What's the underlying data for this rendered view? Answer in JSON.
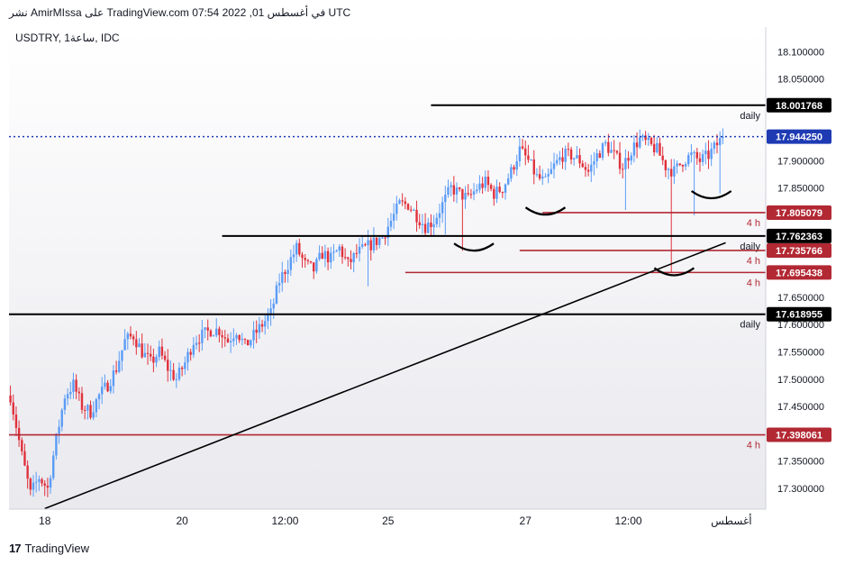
{
  "header": {
    "published_line": "نشر AmirMIssa على TradingView.com في أغسطس 01, 2022 07:54 UTC",
    "symbol_line": "USDTRY, 1ساعة, IDC"
  },
  "footer": {
    "brand": "TradingView",
    "logo_glyph": "17"
  },
  "colors": {
    "up": "#5b9cf6",
    "down": "#e0313c",
    "bg_top": "#ffffff",
    "bg_bottom": "#e9e9ee",
    "last_price_line": "#1e3bb3",
    "support_line": "#b22833",
    "level_line": "#000000"
  },
  "chart_data": {
    "type": "candlestick",
    "symbol": "USDTRY",
    "timeframe": "1ساعة",
    "source": "IDC",
    "y_range": [
      17.262,
      18.145
    ],
    "y_ticks": [
      {
        "value": 18.1,
        "label": "18.100000"
      },
      {
        "value": 18.05,
        "label": "18.050000"
      },
      {
        "value": 17.9,
        "label": "17.900000"
      },
      {
        "value": 17.85,
        "label": "17.850000"
      },
      {
        "value": 17.65,
        "label": "17.650000"
      },
      {
        "value": 17.6,
        "label": "17.600000"
      },
      {
        "value": 17.55,
        "label": "17.550000"
      },
      {
        "value": 17.5,
        "label": "17.500000"
      },
      {
        "value": 17.45,
        "label": "17.450000"
      },
      {
        "value": 17.35,
        "label": "17.350000"
      },
      {
        "value": 17.3,
        "label": "17.300000"
      }
    ],
    "x_ticks": [
      {
        "label": "18",
        "t": 0.0
      },
      {
        "label": "20",
        "t": 48.0
      },
      {
        "label": "12:00",
        "t": 84.0
      },
      {
        "label": "25",
        "t": 120.0
      },
      {
        "label": "27",
        "t": 168.0
      },
      {
        "label": "12:00",
        "t": 204.0
      },
      {
        "label": "أغسطس",
        "t": 240.0
      }
    ],
    "t_range": [
      -12.5,
      252
    ],
    "last_price": {
      "value": 17.94425,
      "label": "17.944250"
    },
    "levels": [
      {
        "value": 18.001768,
        "label": "18.001768",
        "tf": "daily",
        "kind": "daily",
        "t_start": 135
      },
      {
        "value": 17.805079,
        "label": "17.805079",
        "tf": "4 h",
        "kind": "4h",
        "t_start": 174
      },
      {
        "value": 17.762363,
        "label": "17.762363",
        "tf": "daily",
        "kind": "daily",
        "t_start": 62
      },
      {
        "value": 17.735766,
        "label": "17.735766",
        "tf": "4 h",
        "kind": "4h",
        "t_start": 166
      },
      {
        "value": 17.695438,
        "label": "17.695438",
        "tf": "4 h",
        "kind": "4h",
        "t_start": 126
      },
      {
        "value": 17.618955,
        "label": "17.618955",
        "tf": "daily",
        "kind": "daily",
        "t_start": -12.5
      },
      {
        "value": 17.398061,
        "label": "17.398061",
        "tf": "4 h",
        "kind": "4h",
        "t_start": -12.5
      }
    ],
    "trendline": {
      "from": {
        "t": 0.0,
        "v": 17.263
      },
      "to": {
        "t": 238.0,
        "v": 17.75
      }
    },
    "anchors": [
      [
        -12,
        17.47
      ],
      [
        -8,
        17.36
      ],
      [
        -5,
        17.29
      ],
      [
        -2,
        17.32
      ],
      [
        1,
        17.3
      ],
      [
        4,
        17.39
      ],
      [
        7,
        17.47
      ],
      [
        10,
        17.49
      ],
      [
        13,
        17.45
      ],
      [
        16,
        17.44
      ],
      [
        19,
        17.47
      ],
      [
        22,
        17.49
      ],
      [
        25,
        17.52
      ],
      [
        28,
        17.57
      ],
      [
        31,
        17.58
      ],
      [
        34,
        17.55
      ],
      [
        37,
        17.53
      ],
      [
        40,
        17.55
      ],
      [
        43,
        17.52
      ],
      [
        46,
        17.5
      ],
      [
        49,
        17.53
      ],
      [
        52,
        17.57
      ],
      [
        55,
        17.58
      ],
      [
        58,
        17.59
      ],
      [
        61,
        17.59
      ],
      [
        64,
        17.57
      ],
      [
        67,
        17.59
      ],
      [
        70,
        17.56
      ],
      [
        73,
        17.58
      ],
      [
        76,
        17.6
      ],
      [
        79,
        17.62
      ],
      [
        82,
        17.68
      ],
      [
        85,
        17.71
      ],
      [
        88,
        17.74
      ],
      [
        91,
        17.71
      ],
      [
        94,
        17.7
      ],
      [
        97,
        17.73
      ],
      [
        100,
        17.72
      ],
      [
        103,
        17.74
      ],
      [
        106,
        17.71
      ],
      [
        109,
        17.73
      ],
      [
        112,
        17.74
      ],
      [
        115,
        17.75
      ],
      [
        118,
        17.76
      ],
      [
        121,
        17.79
      ],
      [
        124,
        17.82
      ],
      [
        127,
        17.82
      ],
      [
        130,
        17.8
      ],
      [
        133,
        17.78
      ],
      [
        136,
        17.79
      ],
      [
        139,
        17.82
      ],
      [
        142,
        17.85
      ],
      [
        145,
        17.84
      ],
      [
        148,
        17.83
      ],
      [
        151,
        17.85
      ],
      [
        154,
        17.86
      ],
      [
        157,
        17.84
      ],
      [
        160,
        17.85
      ],
      [
        163,
        17.88
      ],
      [
        166,
        17.92
      ],
      [
        169,
        17.9
      ],
      [
        172,
        17.87
      ],
      [
        175,
        17.86
      ],
      [
        178,
        17.89
      ],
      [
        181,
        17.91
      ],
      [
        184,
        17.91
      ],
      [
        187,
        17.9
      ],
      [
        190,
        17.88
      ],
      [
        193,
        17.91
      ],
      [
        196,
        17.93
      ],
      [
        199,
        17.91
      ],
      [
        202,
        17.89
      ],
      [
        205,
        17.92
      ],
      [
        208,
        17.94
      ],
      [
        211,
        17.93
      ],
      [
        214,
        17.92
      ],
      [
        217,
        17.89
      ],
      [
        220,
        17.88
      ],
      [
        223,
        17.9
      ],
      [
        226,
        17.91
      ],
      [
        229,
        17.9
      ],
      [
        232,
        17.91
      ],
      [
        235,
        17.93
      ],
      [
        237,
        17.944
      ]
    ],
    "spikes": [
      {
        "t": 113,
        "low": 17.67
      },
      {
        "t": 140,
        "low": 17.765
      },
      {
        "t": 146,
        "low": 17.735
      },
      {
        "t": 203,
        "low": 17.81
      },
      {
        "t": 219,
        "low": 17.695
      },
      {
        "t": 227,
        "low": 17.8
      },
      {
        "t": 236,
        "low": 17.84
      }
    ],
    "arcs": [
      {
        "t": 150,
        "v": 17.742
      },
      {
        "t": 175,
        "v": 17.808
      },
      {
        "t": 220,
        "v": 17.697
      },
      {
        "t": 233,
        "v": 17.838
      }
    ]
  }
}
